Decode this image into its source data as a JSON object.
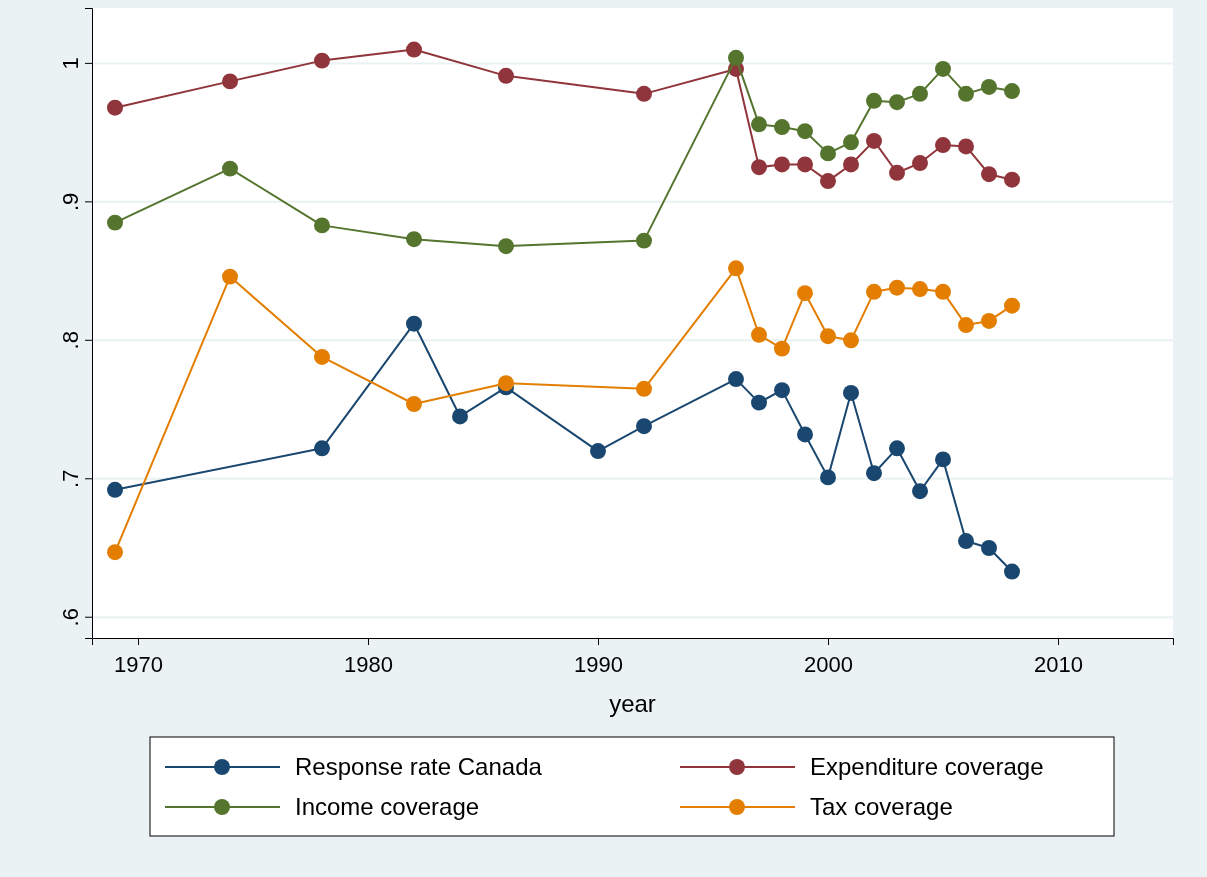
{
  "chart_data": {
    "type": "line",
    "xlabel": "year",
    "xlim": [
      1968,
      2015
    ],
    "xticks": [
      1970,
      1980,
      1990,
      2000,
      2010
    ],
    "ylim": [
      0.585,
      1.04
    ],
    "yticks": [
      {
        "value": 0.6,
        "label": ".6"
      },
      {
        "value": 0.7,
        "label": ".7"
      },
      {
        "value": 0.8,
        "label": ".8"
      },
      {
        "value": 0.9,
        "label": ".9"
      },
      1
    ],
    "grid": "y",
    "legend": "bottom",
    "marker": "circle",
    "line_style": "solid",
    "series": [
      {
        "name": "Response rate Canada",
        "color": "#1a476f",
        "x": [
          1969,
          1978,
          1982,
          1984,
          1986,
          1990,
          1992,
          1996,
          1997,
          1998,
          1999,
          2000,
          2001,
          2002,
          2003,
          2004,
          2005,
          2006,
          2007,
          2008
        ],
        "values": [
          0.692,
          0.722,
          0.812,
          0.745,
          0.766,
          0.72,
          0.738,
          0.772,
          0.755,
          0.764,
          0.732,
          0.701,
          0.762,
          0.704,
          0.722,
          0.691,
          0.714,
          0.655,
          0.65,
          0.633
        ]
      },
      {
        "name": "Expenditure coverage",
        "color": "#90353b",
        "x": [
          1969,
          1974,
          1978,
          1982,
          1986,
          1992,
          1996,
          1997,
          1998,
          1999,
          2000,
          2001,
          2002,
          2003,
          2004,
          2005,
          2006,
          2007,
          2008
        ],
        "values": [
          0.968,
          0.987,
          1.002,
          1.01,
          0.991,
          0.978,
          0.996,
          0.925,
          0.927,
          0.927,
          0.915,
          0.927,
          0.944,
          0.921,
          0.928,
          0.941,
          0.94,
          0.92,
          0.916
        ]
      },
      {
        "name": "Income coverage",
        "color": "#55752f",
        "x": [
          1969,
          1974,
          1978,
          1982,
          1986,
          1992,
          1996,
          1997,
          1998,
          1999,
          2000,
          2001,
          2002,
          2003,
          2004,
          2005,
          2006,
          2007,
          2008
        ],
        "values": [
          0.885,
          0.924,
          0.883,
          0.873,
          0.868,
          0.872,
          1.004,
          0.956,
          0.954,
          0.951,
          0.935,
          0.943,
          0.973,
          0.972,
          0.978,
          0.996,
          0.978,
          0.983,
          0.98
        ]
      },
      {
        "name": "Tax coverage",
        "color": "#e37e00",
        "x": [
          1969,
          1974,
          1978,
          1982,
          1986,
          1992,
          1996,
          1997,
          1998,
          1999,
          2000,
          2001,
          2002,
          2003,
          2004,
          2005,
          2006,
          2007,
          2008
        ],
        "values": [
          0.647,
          0.846,
          0.788,
          0.754,
          0.769,
          0.765,
          0.852,
          0.804,
          0.794,
          0.834,
          0.803,
          0.8,
          0.835,
          0.838,
          0.837,
          0.835,
          0.811,
          0.814,
          0.825
        ]
      }
    ]
  }
}
